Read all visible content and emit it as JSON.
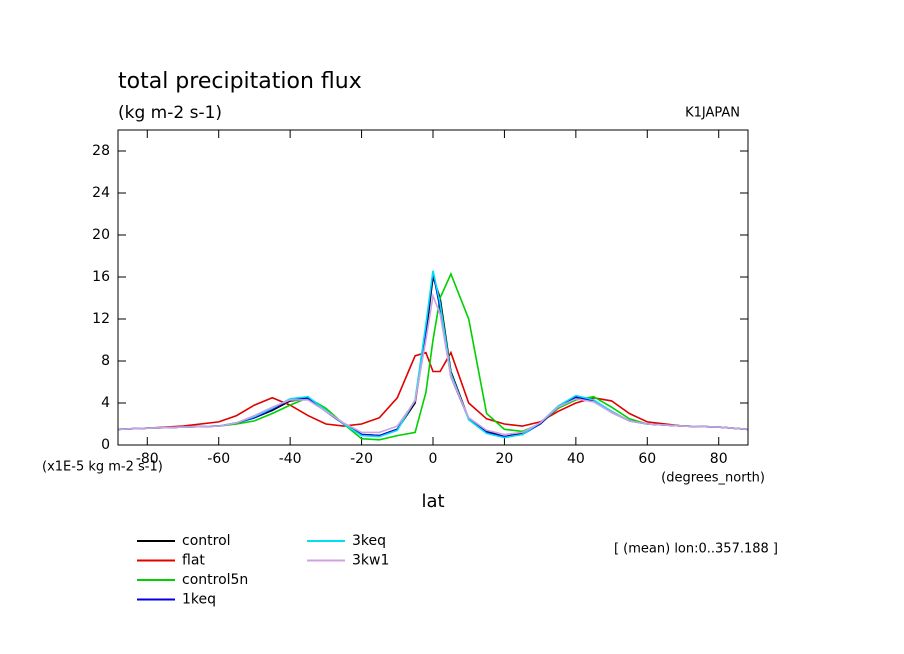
{
  "chart_data": {
    "type": "line",
    "title": "total precipitation flux",
    "subtitle": "(kg m-2 s-1)",
    "dataset_label": "K1JAPAN",
    "y_unit_label": "(x1E-5 kg m-2 s-1)",
    "x_unit_label": "(degrees_north)",
    "xlabel": "lat",
    "note": "[ (mean) lon:0..357.188 ]",
    "xlim": [
      -88.2,
      88.2
    ],
    "xticks": [
      -80,
      -60,
      -40,
      -20,
      0,
      20,
      40,
      60,
      80
    ],
    "ylim": [
      0,
      30
    ],
    "yticks": [
      0,
      4,
      8,
      12,
      16,
      20,
      24,
      28
    ],
    "x": [
      -88,
      -80,
      -70,
      -60,
      -55,
      -50,
      -45,
      -40,
      -35,
      -30,
      -25,
      -20,
      -15,
      -10,
      -5,
      -2,
      0,
      2,
      5,
      10,
      15,
      20,
      25,
      30,
      35,
      40,
      45,
      50,
      55,
      60,
      70,
      80,
      88
    ],
    "series": [
      {
        "name": "control",
        "color": "#000000",
        "values": [
          1.5,
          1.6,
          1.7,
          1.8,
          2.1,
          2.6,
          3.3,
          4.2,
          4.4,
          3.2,
          2.0,
          1.0,
          0.9,
          1.5,
          4.0,
          10.5,
          16.0,
          14.0,
          7.0,
          2.5,
          1.3,
          0.8,
          1.1,
          2.0,
          3.5,
          4.5,
          4.2,
          3.2,
          2.3,
          2.0,
          1.8,
          1.7,
          1.5
        ]
      },
      {
        "name": "flat",
        "color": "#e00000",
        "values": [
          1.5,
          1.6,
          1.8,
          2.2,
          2.8,
          3.8,
          4.5,
          3.8,
          2.8,
          2.0,
          1.8,
          2.0,
          2.6,
          4.5,
          8.5,
          8.8,
          7.0,
          7.0,
          8.8,
          4.0,
          2.5,
          2.0,
          1.8,
          2.2,
          3.2,
          4.0,
          4.5,
          4.2,
          3.0,
          2.2,
          1.8,
          1.7,
          1.5
        ]
      },
      {
        "name": "control5n",
        "color": "#00d000",
        "values": [
          1.5,
          1.6,
          1.7,
          1.8,
          2.0,
          2.3,
          3.0,
          3.8,
          4.5,
          3.5,
          2.0,
          0.6,
          0.5,
          0.9,
          1.2,
          5.0,
          10.0,
          14.0,
          16.3,
          12.0,
          3.0,
          1.5,
          1.3,
          2.0,
          3.5,
          4.3,
          4.6,
          3.6,
          2.5,
          2.0,
          1.8,
          1.7,
          1.5
        ]
      },
      {
        "name": "1keq",
        "color": "#0000e0",
        "values": [
          1.5,
          1.6,
          1.7,
          1.8,
          2.1,
          2.6,
          3.4,
          4.3,
          4.5,
          3.2,
          2.0,
          1.0,
          0.9,
          1.5,
          4.2,
          11.0,
          16.5,
          13.0,
          6.5,
          2.5,
          1.2,
          0.8,
          1.0,
          2.0,
          3.6,
          4.6,
          4.2,
          3.1,
          2.3,
          2.0,
          1.8,
          1.7,
          1.5
        ]
      },
      {
        "name": "3keq",
        "color": "#00e0f0",
        "values": [
          1.5,
          1.6,
          1.7,
          1.8,
          2.1,
          2.7,
          3.5,
          4.4,
          4.6,
          3.3,
          2.0,
          0.9,
          0.8,
          1.4,
          4.3,
          11.5,
          16.6,
          13.5,
          6.8,
          2.4,
          1.1,
          0.7,
          1.0,
          2.1,
          3.7,
          4.7,
          4.3,
          3.2,
          2.3,
          2.0,
          1.8,
          1.7,
          1.5
        ]
      },
      {
        "name": "3kw1",
        "color": "#d0a0e0",
        "values": [
          1.5,
          1.6,
          1.7,
          1.8,
          2.1,
          2.8,
          3.6,
          4.3,
          4.3,
          3.2,
          2.1,
          1.2,
          1.2,
          1.8,
          4.2,
          10.0,
          14.2,
          12.5,
          6.5,
          2.6,
          1.4,
          1.0,
          1.2,
          2.1,
          3.6,
          4.4,
          4.1,
          3.1,
          2.3,
          2.0,
          1.8,
          1.7,
          1.5
        ]
      }
    ]
  }
}
